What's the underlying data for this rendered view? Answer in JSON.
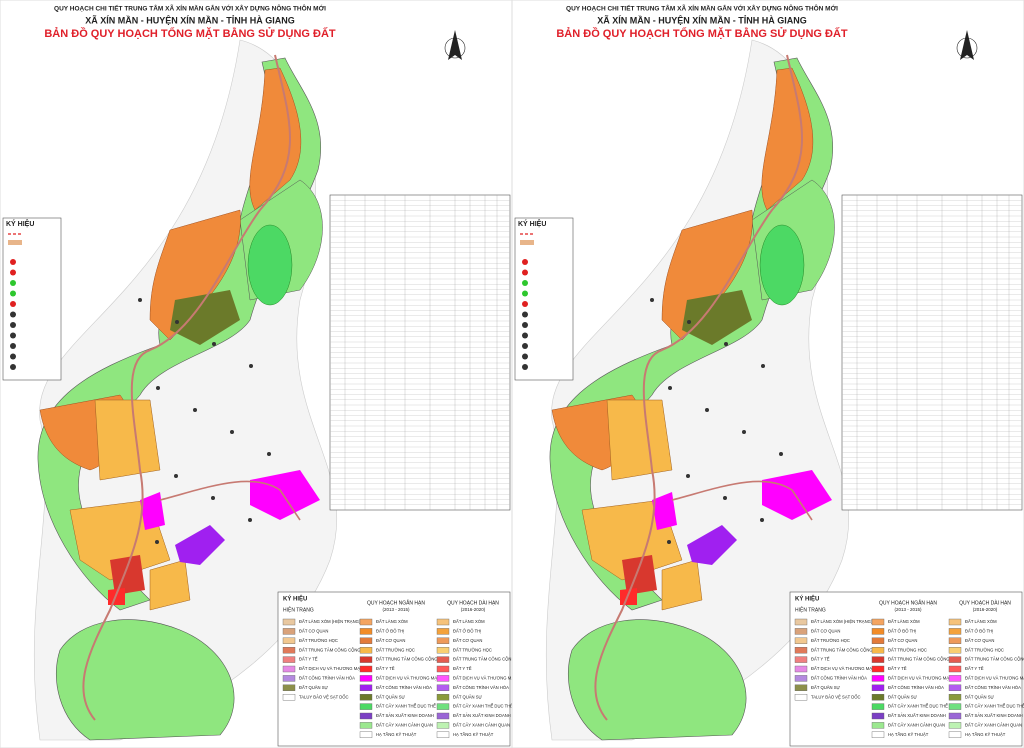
{
  "header": {
    "line1": "QUY HOẠCH CHI TIẾT TRUNG TÂM XÃ XÍN MẦN GẮN VỚI XÂY DỰNG NÔNG THÔN MỚI",
    "line2": "XÃ XÍN MẦN - HUYỆN XÍN MẦN - TỈNH HÀ GIANG",
    "line3": "BẢN ĐỒ QUY HOẠCH TỔNG MẶT BẰNG SỬ DỤNG ĐẤT"
  },
  "side_legend": {
    "title": "KÝ HIỆU"
  },
  "legend": {
    "title": "KÝ HIỆU",
    "columns": [
      {
        "heading": "HIỆN TRẠNG",
        "items": [
          {
            "label": "ĐẤT LÀNG XÓM (HIỆN TRẠNG)",
            "color": "#e9c8a0"
          },
          {
            "label": "ĐẤT CƠ QUAN",
            "color": "#d9a27a"
          },
          {
            "label": "ĐẤT TRƯỜNG HỌC",
            "color": "#f2c890"
          },
          {
            "label": "ĐẤT TRUNG TÂM CÔNG CỘNG",
            "color": "#e07a5a"
          },
          {
            "label": "ĐẤT Y TẾ",
            "color": "#f08080"
          },
          {
            "label": "ĐẤT DỊCH VỤ VÀ THƯƠNG MẠI",
            "color": "#e58ae5"
          },
          {
            "label": "ĐẤT CÔNG TRÌNH VĂN HÓA",
            "color": "#b48adf"
          },
          {
            "label": "ĐẤT QUÂN SỰ",
            "color": "#8c8f4a"
          },
          {
            "label": "TALUY BẢO VỆ SẠT DỐC",
            "color": "#ffffff"
          }
        ]
      },
      {
        "heading": "QUY HOẠCH NGẮN HẠN",
        "sub": "(2013 - 2015)",
        "items": [
          {
            "label": "ĐẤT LÀNG XÓM",
            "color": "#f4a460"
          },
          {
            "label": "ĐẤT Ở ĐÔ THỊ",
            "color": "#f28c28"
          },
          {
            "label": "ĐẤT CƠ QUAN",
            "color": "#e37b3a"
          },
          {
            "label": "ĐẤT TRƯỜNG HỌC",
            "color": "#f7b94a"
          },
          {
            "label": "ĐẤT TRUNG TÂM CÔNG CỘNG",
            "color": "#d8382e"
          },
          {
            "label": "ĐẤT Y TẾ",
            "color": "#ff2a2a"
          },
          {
            "label": "ĐẤT DỊCH VỤ VÀ THƯƠNG MẠI",
            "color": "#ff00ff"
          },
          {
            "label": "ĐẤT CÔNG TRÌNH VĂN HÓA",
            "color": "#a020f0"
          },
          {
            "label": "ĐẤT QUÂN SỰ",
            "color": "#6b7a2a"
          },
          {
            "label": "ĐẤT CÂY XANH THỂ DỤC THỂ THAO",
            "color": "#4cd964"
          },
          {
            "label": "ĐẤT SẢN XUẤT KINH DOANH",
            "color": "#7b3fc4"
          },
          {
            "label": "ĐẤT CÂY XANH CẢNH QUAN",
            "color": "#9be88f"
          },
          {
            "label": "HẠ TẦNG KỸ THUẬT",
            "color": "#ffffff"
          }
        ]
      },
      {
        "heading": "QUY HOẠCH DÀI HẠN",
        "sub": "(2016-2020)",
        "items": [
          {
            "label": "ĐẤT LÀNG XÓM",
            "color": "#f6c27a"
          },
          {
            "label": "ĐẤT Ở ĐÔ THỊ",
            "color": "#f4a23c"
          },
          {
            "label": "ĐẤT CƠ QUAN",
            "color": "#ee9a5a"
          },
          {
            "label": "ĐẤT TRƯỜNG HỌC",
            "color": "#f9cf72"
          },
          {
            "label": "ĐẤT TRUNG TÂM CÔNG CỘNG",
            "color": "#e45c50"
          },
          {
            "label": "ĐẤT Y TẾ",
            "color": "#ff5a5a"
          },
          {
            "label": "ĐẤT DỊCH VỤ VÀ THƯƠNG MẠI",
            "color": "#ff55ff"
          },
          {
            "label": "ĐẤT CÔNG TRÌNH VĂN HÓA",
            "color": "#b35cf0"
          },
          {
            "label": "ĐẤT QUÂN SỰ",
            "color": "#8a9a3a"
          },
          {
            "label": "ĐẤT CÂY XANH THỂ DỤC THỂ THAO",
            "color": "#6fe07f"
          },
          {
            "label": "ĐẤT SẢN XUẤT KINH DOANH",
            "color": "#9a66d6"
          },
          {
            "label": "ĐẤT CÂY XANH CẢNH QUAN",
            "color": "#bdf2b2"
          },
          {
            "label": "HẠ TẦNG KỸ THUẬT",
            "color": "#ffffff"
          }
        ]
      }
    ]
  }
}
